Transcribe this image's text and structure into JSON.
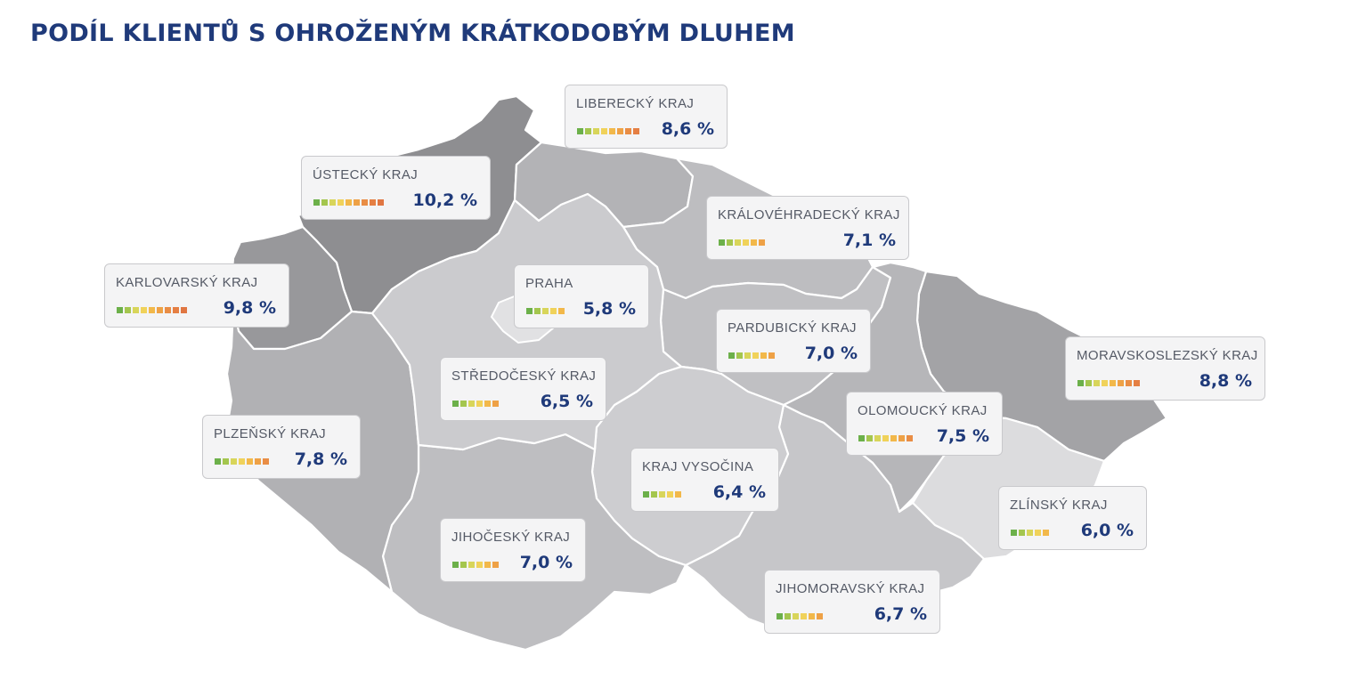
{
  "title": "PODÍL KLIENTŮ S OHROŽENÝM KRÁTKODOBÝM DLUHEM",
  "colors": {
    "title": "#1f3a7a",
    "value": "#1f3a7a",
    "scale": [
      "#6cb04a",
      "#a4c64e",
      "#d8d55a",
      "#f0d25a",
      "#f2b84a",
      "#eea146",
      "#e98d45",
      "#e57f43",
      "#e07642",
      "#dd6f41"
    ]
  },
  "regions": [
    {
      "id": "liberecky",
      "name": "LIBERECKÝ KRAJ",
      "value_label": "8,6 %",
      "value": 8.6,
      "fill": "#b3b3b6"
    },
    {
      "id": "ustecky",
      "name": "ÚSTECKÝ KRAJ",
      "value_label": "10,2 %",
      "value": 10.2,
      "fill": "#8e8e91"
    },
    {
      "id": "kralovehradecky",
      "name": "KRÁLOVÉHRADECKÝ KRAJ",
      "value_label": "7,1 %",
      "value": 7.1,
      "fill": "#bdbdc0"
    },
    {
      "id": "karlovarsky",
      "name": "KARLOVARSKÝ KRAJ",
      "value_label": "9,8 %",
      "value": 9.8,
      "fill": "#98989b"
    },
    {
      "id": "praha",
      "name": "PRAHA",
      "value_label": "5,8 %",
      "value": 5.8,
      "fill": "#e1e1e3"
    },
    {
      "id": "pardubicky",
      "name": "PARDUBICKÝ KRAJ",
      "value_label": "7,0 %",
      "value": 7.0,
      "fill": "#c0c0c3"
    },
    {
      "id": "moravskoslezsky",
      "name": "MORAVSKOSLEZSKÝ KRAJ",
      "value_label": "8,8 %",
      "value": 8.8,
      "fill": "#a3a3a6"
    },
    {
      "id": "stredocesky",
      "name": "STŘEDOČESKÝ KRAJ",
      "value_label": "6,5 %",
      "value": 6.5,
      "fill": "#cbcbce"
    },
    {
      "id": "olomoucky",
      "name": "OLOMOUCKÝ KRAJ",
      "value_label": "7,5 %",
      "value": 7.5,
      "fill": "#b6b6b9"
    },
    {
      "id": "plzensky",
      "name": "PLZEŇSKÝ KRAJ",
      "value_label": "7,8 %",
      "value": 7.8,
      "fill": "#b1b1b4"
    },
    {
      "id": "vysocina",
      "name": "KRAJ VYSOČINA",
      "value_label": "6,4 %",
      "value": 6.4,
      "fill": "#cdcdd0"
    },
    {
      "id": "zlinsky",
      "name": "ZLÍNSKÝ KRAJ",
      "value_label": "6,0 %",
      "value": 6.0,
      "fill": "#dcdcde"
    },
    {
      "id": "jihocesky",
      "name": "JIHOČESKÝ KRAJ",
      "value_label": "7,0 %",
      "value": 7.0,
      "fill": "#bebec1"
    },
    {
      "id": "jihomoravsky",
      "name": "JIHOMORAVSKÝ KRAJ",
      "value_label": "6,7 %",
      "value": 6.7,
      "fill": "#c6c6c9"
    }
  ]
}
